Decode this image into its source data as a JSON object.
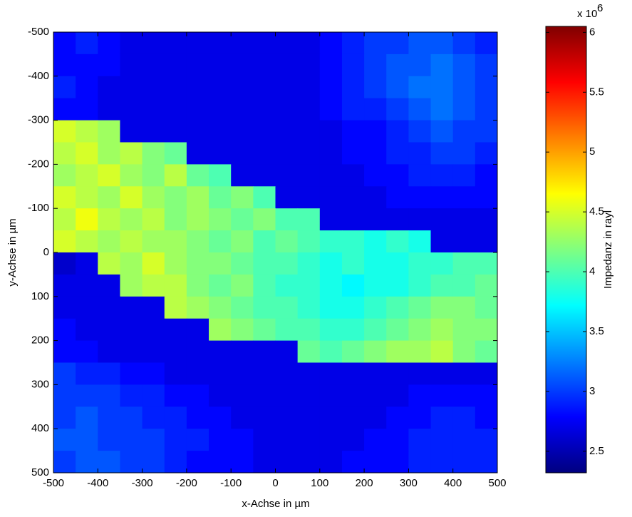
{
  "chart_data": {
    "type": "heatmap",
    "x_label": "x-Achse in µm",
    "y_label": "y-Achse in µm",
    "colorbar_label": "Impedanz in rayl",
    "colorbar_multiplier": "x 10",
    "colorbar_exponent": "6",
    "colormap": "jet",
    "xlim": [
      -500,
      500
    ],
    "ylim": [
      -500,
      500
    ],
    "yreverse": true,
    "xticks": [
      -500,
      -400,
      -300,
      -200,
      -100,
      0,
      100,
      200,
      300,
      400,
      500
    ],
    "yticks": [
      -500,
      -400,
      -300,
      -200,
      -100,
      0,
      100,
      200,
      300,
      400,
      500
    ],
    "clim": [
      2.32,
      6.05
    ],
    "cticks": [
      2.5,
      3,
      3.5,
      4,
      4.5,
      5,
      5.5,
      6
    ],
    "x": [
      -475,
      -425,
      -375,
      -325,
      -275,
      -225,
      -175,
      -125,
      -75,
      -25,
      25,
      75,
      125,
      175,
      225,
      275,
      325,
      375,
      425,
      475
    ],
    "y": [
      -475,
      -425,
      -375,
      -325,
      -275,
      -225,
      -175,
      -125,
      -75,
      -25,
      25,
      75,
      125,
      175,
      225,
      275,
      325,
      375,
      425,
      475
    ],
    "z": [
      [
        2.8,
        2.9,
        2.8,
        2.7,
        2.7,
        2.7,
        2.7,
        2.7,
        2.7,
        2.7,
        2.7,
        2.7,
        2.8,
        2.9,
        3.0,
        3.0,
        3.1,
        3.1,
        3.0,
        2.9
      ],
      [
        2.8,
        2.8,
        2.8,
        2.7,
        2.7,
        2.7,
        2.7,
        2.7,
        2.7,
        2.7,
        2.7,
        2.7,
        2.8,
        2.9,
        3.0,
        3.1,
        3.1,
        3.2,
        3.1,
        3.0
      ],
      [
        2.9,
        2.8,
        2.7,
        2.7,
        2.7,
        2.7,
        2.7,
        2.7,
        2.7,
        2.7,
        2.7,
        2.7,
        2.8,
        2.9,
        3.0,
        3.1,
        3.2,
        3.2,
        3.1,
        3.0
      ],
      [
        2.8,
        2.8,
        2.7,
        2.7,
        2.7,
        2.7,
        2.7,
        2.7,
        2.7,
        2.7,
        2.7,
        2.7,
        2.8,
        2.9,
        2.9,
        3.0,
        3.1,
        3.2,
        3.1,
        3.0
      ],
      [
        4.5,
        4.4,
        4.3,
        2.7,
        2.7,
        2.7,
        2.7,
        2.7,
        2.7,
        2.7,
        2.7,
        2.7,
        2.7,
        2.8,
        2.8,
        2.9,
        3.0,
        3.1,
        3.0,
        3.0
      ],
      [
        4.4,
        4.5,
        4.3,
        4.4,
        4.2,
        4.1,
        2.7,
        2.7,
        2.7,
        2.7,
        2.7,
        2.7,
        2.7,
        2.8,
        2.8,
        2.9,
        2.9,
        3.0,
        3.0,
        2.9
      ],
      [
        4.3,
        4.4,
        4.5,
        4.3,
        4.2,
        4.4,
        4.1,
        4.0,
        2.7,
        2.7,
        2.7,
        2.7,
        2.7,
        2.7,
        2.8,
        2.8,
        2.9,
        2.9,
        2.9,
        2.8
      ],
      [
        4.5,
        4.4,
        4.3,
        4.5,
        4.3,
        4.2,
        4.3,
        4.1,
        4.2,
        4.0,
        2.7,
        2.7,
        2.7,
        2.7,
        2.7,
        2.8,
        2.8,
        2.8,
        2.8,
        2.8
      ],
      [
        4.4,
        4.6,
        4.4,
        4.3,
        4.4,
        4.2,
        4.3,
        4.2,
        4.1,
        4.2,
        4.0,
        4.0,
        2.7,
        2.7,
        2.7,
        2.7,
        2.7,
        2.7,
        2.7,
        2.7
      ],
      [
        4.5,
        4.4,
        4.3,
        4.4,
        4.3,
        4.3,
        4.2,
        4.1,
        4.2,
        4.0,
        4.1,
        4.0,
        3.9,
        3.9,
        3.8,
        3.9,
        3.8,
        2.7,
        2.7,
        2.7
      ],
      [
        2.6,
        2.7,
        4.4,
        4.3,
        4.5,
        4.3,
        4.2,
        4.2,
        4.1,
        4.0,
        4.0,
        3.9,
        3.8,
        3.9,
        3.8,
        3.8,
        3.9,
        3.9,
        4.0,
        4.0
      ],
      [
        2.7,
        2.7,
        2.7,
        4.3,
        4.4,
        4.4,
        4.2,
        4.1,
        4.2,
        4.0,
        3.9,
        3.9,
        3.8,
        3.7,
        3.8,
        3.8,
        3.9,
        4.0,
        4.0,
        4.1
      ],
      [
        2.7,
        2.7,
        2.7,
        2.7,
        2.7,
        4.4,
        4.3,
        4.2,
        4.1,
        4.0,
        4.0,
        3.9,
        3.8,
        3.8,
        3.9,
        4.0,
        4.1,
        4.2,
        4.2,
        4.1
      ],
      [
        2.8,
        2.7,
        2.7,
        2.7,
        2.7,
        2.7,
        2.7,
        4.3,
        4.2,
        4.1,
        4.0,
        4.0,
        3.9,
        3.9,
        4.0,
        4.1,
        4.2,
        4.3,
        4.2,
        4.2
      ],
      [
        2.8,
        2.8,
        2.7,
        2.7,
        2.7,
        2.7,
        2.7,
        2.7,
        2.7,
        2.7,
        2.7,
        4.1,
        4.0,
        4.1,
        4.2,
        4.3,
        4.3,
        4.4,
        4.2,
        4.1
      ],
      [
        3.0,
        2.9,
        2.9,
        2.8,
        2.8,
        2.7,
        2.7,
        2.7,
        2.7,
        2.7,
        2.7,
        2.7,
        2.7,
        2.7,
        2.7,
        2.7,
        2.7,
        2.7,
        2.7,
        2.7
      ],
      [
        3.0,
        3.0,
        3.0,
        2.9,
        2.9,
        2.8,
        2.8,
        2.7,
        2.7,
        2.7,
        2.7,
        2.7,
        2.7,
        2.7,
        2.7,
        2.7,
        2.8,
        2.8,
        2.8,
        2.8
      ],
      [
        3.0,
        3.1,
        3.0,
        3.0,
        2.9,
        2.9,
        2.8,
        2.8,
        2.7,
        2.7,
        2.7,
        2.7,
        2.7,
        2.7,
        2.7,
        2.8,
        2.8,
        2.9,
        2.9,
        2.8
      ],
      [
        3.1,
        3.1,
        3.0,
        3.0,
        3.0,
        2.9,
        2.9,
        2.8,
        2.8,
        2.7,
        2.7,
        2.7,
        2.7,
        2.7,
        2.8,
        2.8,
        2.9,
        2.9,
        2.9,
        2.9
      ],
      [
        3.0,
        3.1,
        3.1,
        3.0,
        3.0,
        2.9,
        2.8,
        2.8,
        2.8,
        2.7,
        2.7,
        2.7,
        2.7,
        2.8,
        2.8,
        2.8,
        2.9,
        2.9,
        2.9,
        2.9
      ]
    ]
  }
}
